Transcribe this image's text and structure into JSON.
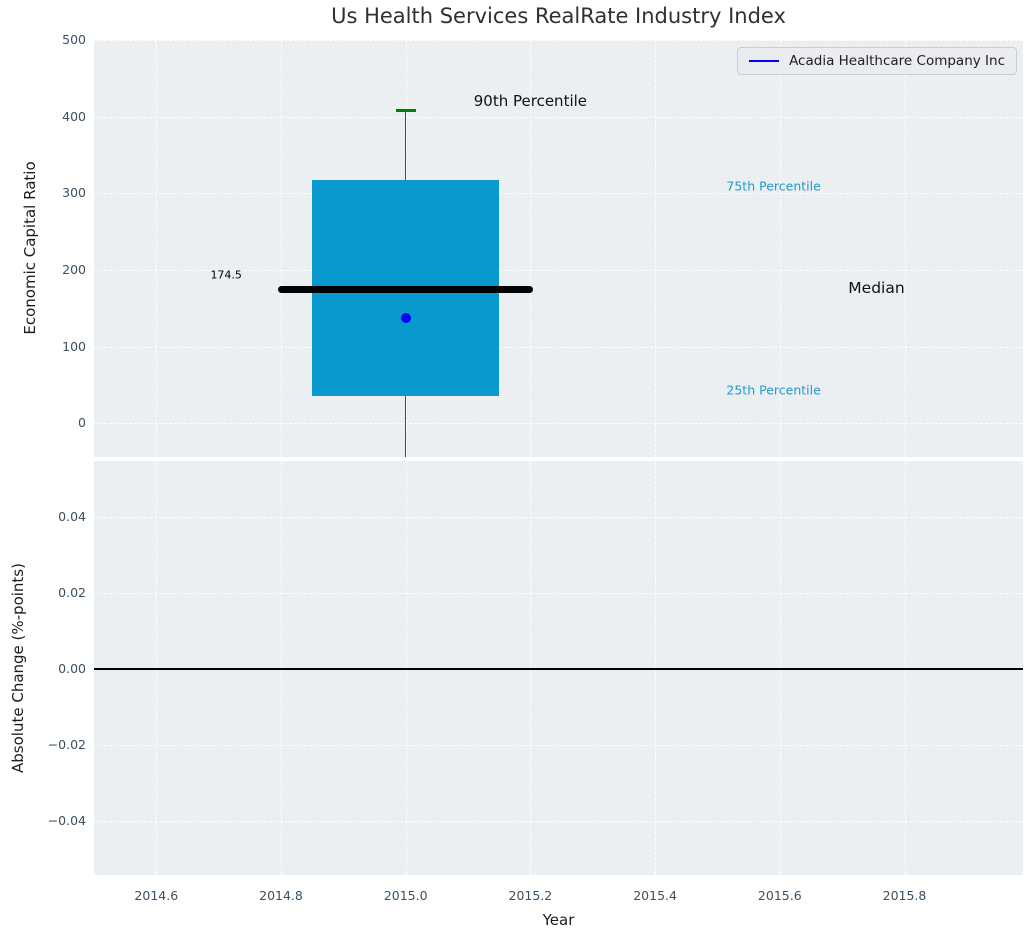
{
  "title": "Us Health Services RealRate Industry Index",
  "legend": {
    "label": "Acadia Healthcare Company Inc",
    "line_color": "#0000FF"
  },
  "colors": {
    "figure_bg": "#ffffff",
    "plot_bg": "#ECEFF1",
    "grid": "#ffffff",
    "box_fill": "#089ACF",
    "whisker": "#4a4a4a",
    "whisker_cap": "#008000",
    "median_line": "#000000",
    "company_point": "#0000FF",
    "percentile_text": "#1B9BD0",
    "tick_text": "#3C4F63",
    "axis_label_text": "#1c1c1c",
    "title_text": "#303030"
  },
  "chart_data": [
    {
      "type": "box",
      "title": "Us Health Services RealRate Industry Index",
      "ylabel": "Economic Capital Ratio",
      "xlim": [
        2014.5,
        2015.99
      ],
      "ylim": [
        -43.9,
        500
      ],
      "grid": true,
      "yticks": [
        {
          "v": 0,
          "label": "0"
        },
        {
          "v": 100,
          "label": "100"
        },
        {
          "v": 200,
          "label": "200"
        },
        {
          "v": 300,
          "label": "300"
        },
        {
          "v": 400,
          "label": "400"
        },
        {
          "v": 500,
          "label": "500"
        }
      ],
      "xticks": [
        {
          "v": 2014.6,
          "label": ""
        },
        {
          "v": 2014.8,
          "label": ""
        },
        {
          "v": 2015.0,
          "label": ""
        },
        {
          "v": 2015.2,
          "label": ""
        },
        {
          "v": 2015.4,
          "label": ""
        },
        {
          "v": 2015.6,
          "label": ""
        },
        {
          "v": 2015.8,
          "label": ""
        }
      ],
      "box": {
        "center_x": 2015.0,
        "p90": 408,
        "p75": 317,
        "median": 174.5,
        "p25": 35,
        "whisker_low_clipped_below_axis": true,
        "box_half_width": 0.15,
        "median_half_width": 0.205,
        "cap_half_width": 0.016
      },
      "company_point": {
        "name": "Acadia Healthcare Company Inc",
        "x": 2015.0,
        "y": 138
      },
      "annotations": [
        {
          "text": "174.5",
          "x": 2014.712,
          "y": 194,
          "size": 11,
          "color": "#000000"
        },
        {
          "text": "90th Percentile",
          "x": 2015.2,
          "y": 421,
          "size": 15,
          "color": "#111111"
        },
        {
          "text": "75th Percentile",
          "x": 2015.59,
          "y": 309,
          "size": 12.5,
          "color": "#1B9BD0"
        },
        {
          "text": "Median",
          "x": 2015.755,
          "y": 176,
          "size": 15.5,
          "color": "#111111"
        },
        {
          "text": "25th Percentile",
          "x": 2015.59,
          "y": 44,
          "size": 12.5,
          "color": "#1B9BD0"
        }
      ],
      "legend_position": "upper right"
    },
    {
      "type": "line",
      "ylabel": "Absolute Change (%-points)",
      "xlabel": "Year",
      "xlim": [
        2014.5,
        2015.99
      ],
      "ylim": [
        -0.0543,
        0.0548
      ],
      "grid": true,
      "zero_line": 0.0,
      "series": [],
      "yticks": [
        {
          "v": 0.04,
          "label": "0.04"
        },
        {
          "v": 0.02,
          "label": "0.02"
        },
        {
          "v": 0.0,
          "label": "0.00"
        },
        {
          "v": -0.02,
          "label": "−0.02"
        },
        {
          "v": -0.04,
          "label": "−0.04"
        }
      ],
      "xticks": [
        {
          "v": 2014.6,
          "label": "2014.6"
        },
        {
          "v": 2014.8,
          "label": "2014.8"
        },
        {
          "v": 2015.0,
          "label": "2015.0"
        },
        {
          "v": 2015.2,
          "label": "2015.2"
        },
        {
          "v": 2015.4,
          "label": "2015.4"
        },
        {
          "v": 2015.6,
          "label": "2015.6"
        },
        {
          "v": 2015.8,
          "label": "2015.8"
        }
      ]
    }
  ]
}
